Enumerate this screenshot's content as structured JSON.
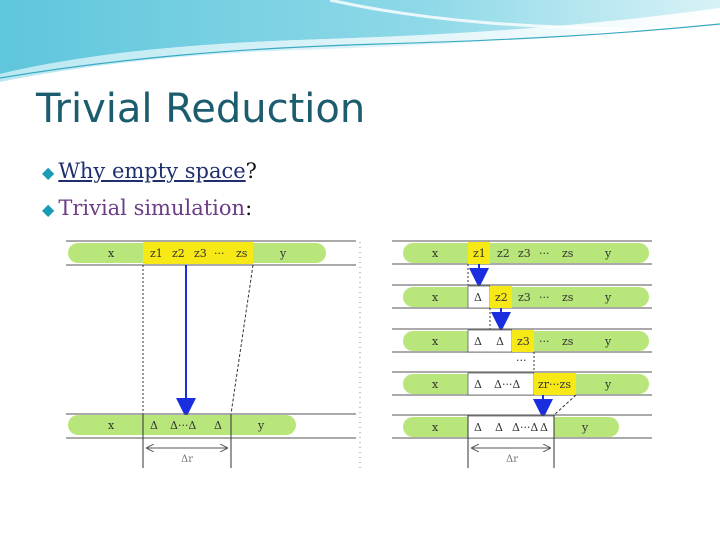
{
  "slide": {
    "title": "Trivial Reduction",
    "bullets": [
      {
        "marker": "◆",
        "text": "Why empty space",
        "suffix": "?"
      },
      {
        "marker": "◆",
        "text": "Trivial simulation",
        "suffix": ":"
      }
    ]
  },
  "colors": {
    "title": "#1b5c6e",
    "bullet_marker": "#1a9bb5",
    "tape_green": "#b9e67a",
    "cell_yellow": "#f6e915",
    "arrow_blue": "#1a2ee0",
    "link_blue": "#1f2f6e",
    "link_purple": "#6b3d86"
  },
  "left_diagram": {
    "top_tape": {
      "x": "x",
      "cells": [
        "z1",
        "z2",
        "z3",
        "···",
        "zs"
      ],
      "y": "y"
    },
    "bottom_tape": {
      "x": "x",
      "cells": [
        "Δ",
        "Δ···Δ",
        "Δ"
      ],
      "y": "y"
    },
    "dimension": "Δr"
  },
  "right_diagram": {
    "rows": [
      {
        "x": "x",
        "cells": [
          "z1",
          "z2",
          "z3",
          "···",
          "zs"
        ],
        "y": "y"
      },
      {
        "x": "x",
        "cells": [
          "Δ",
          "z2",
          "z3",
          "···",
          "zs"
        ],
        "y": "y"
      },
      {
        "x": "x",
        "cells": [
          "Δ",
          "Δ",
          "z3",
          "···",
          "zs"
        ],
        "y": "y"
      },
      {
        "x": "x",
        "cells": [
          "Δ",
          "Δ···Δ",
          "zr···zs"
        ],
        "y": "y"
      },
      {
        "x": "x",
        "cells": [
          "Δ",
          "Δ",
          "Δ···Δ",
          "Δ"
        ],
        "y": "y"
      }
    ],
    "ellipsis": "···",
    "dimension": "Δr"
  }
}
